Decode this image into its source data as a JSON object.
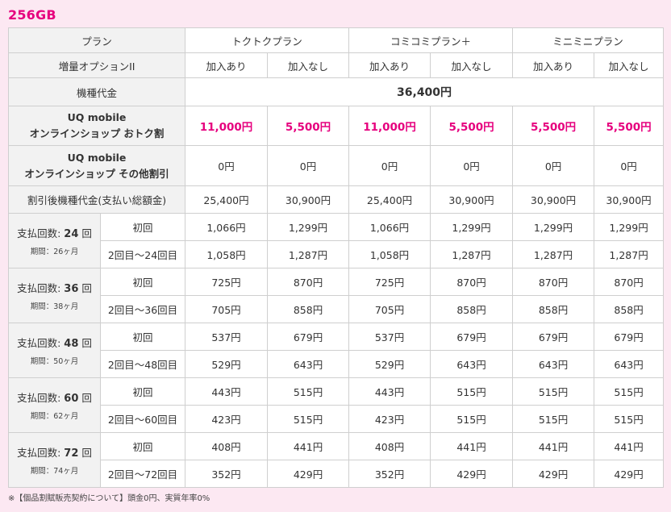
{
  "title": "256GB",
  "header": {
    "plan_label": "プラン",
    "plans": [
      "トクトクプラン",
      "コミコミプラン＋",
      "ミニミニプラン"
    ],
    "option_label": "増量オプションII",
    "with": "加入あり",
    "without": "加入なし"
  },
  "device_price": {
    "label": "機種代金",
    "value": "36,400円"
  },
  "discount_online": {
    "label_1": "UQ mobile",
    "label_2": "オンラインショップ おトク割",
    "values": [
      "11,000円",
      "5,500円",
      "11,000円",
      "5,500円",
      "5,500円",
      "5,500円"
    ]
  },
  "discount_other": {
    "label_1": "UQ mobile",
    "label_2": "オンラインショップ その他割引",
    "values": [
      "0円",
      "0円",
      "0円",
      "0円",
      "0円",
      "0円"
    ]
  },
  "after_discount": {
    "label": "割引後機種代金(支払い総額金)",
    "values": [
      "25,400円",
      "30,900円",
      "25,400円",
      "30,900円",
      "30,900円",
      "30,900円"
    ]
  },
  "installments": [
    {
      "count_prefix": "支払回数: ",
      "count": "24",
      "count_suffix": " 回",
      "period": "期間：26ヶ月",
      "first_label": "初回",
      "first": [
        "1,066円",
        "1,299円",
        "1,066円",
        "1,299円",
        "1,299円",
        "1,299円"
      ],
      "rest_label": "2回目〜24回目",
      "rest": [
        "1,058円",
        "1,287円",
        "1,058円",
        "1,287円",
        "1,287円",
        "1,287円"
      ]
    },
    {
      "count_prefix": "支払回数: ",
      "count": "36",
      "count_suffix": " 回",
      "period": "期間：38ヶ月",
      "first_label": "初回",
      "first": [
        "725円",
        "870円",
        "725円",
        "870円",
        "870円",
        "870円"
      ],
      "rest_label": "2回目〜36回目",
      "rest": [
        "705円",
        "858円",
        "705円",
        "858円",
        "858円",
        "858円"
      ]
    },
    {
      "count_prefix": "支払回数: ",
      "count": "48",
      "count_suffix": " 回",
      "period": "期間：50ヶ月",
      "first_label": "初回",
      "first": [
        "537円",
        "679円",
        "537円",
        "679円",
        "679円",
        "679円"
      ],
      "rest_label": "2回目〜48回目",
      "rest": [
        "529円",
        "643円",
        "529円",
        "643円",
        "643円",
        "643円"
      ]
    },
    {
      "count_prefix": "支払回数: ",
      "count": "60",
      "count_suffix": " 回",
      "period": "期間：62ヶ月",
      "first_label": "初回",
      "first": [
        "443円",
        "515円",
        "443円",
        "515円",
        "515円",
        "515円"
      ],
      "rest_label": "2回目〜60回目",
      "rest": [
        "423円",
        "515円",
        "423円",
        "515円",
        "515円",
        "515円"
      ]
    },
    {
      "count_prefix": "支払回数: ",
      "count": "72",
      "count_suffix": " 回",
      "period": "期間：74ヶ月",
      "first_label": "初回",
      "first": [
        "408円",
        "441円",
        "408円",
        "441円",
        "441円",
        "441円"
      ],
      "rest_label": "2回目〜72回目",
      "rest": [
        "352円",
        "429円",
        "352円",
        "429円",
        "429円",
        "429円"
      ]
    }
  ],
  "footnote": "※【個品割賦販売契約について】頭金0円、実質年率0%"
}
